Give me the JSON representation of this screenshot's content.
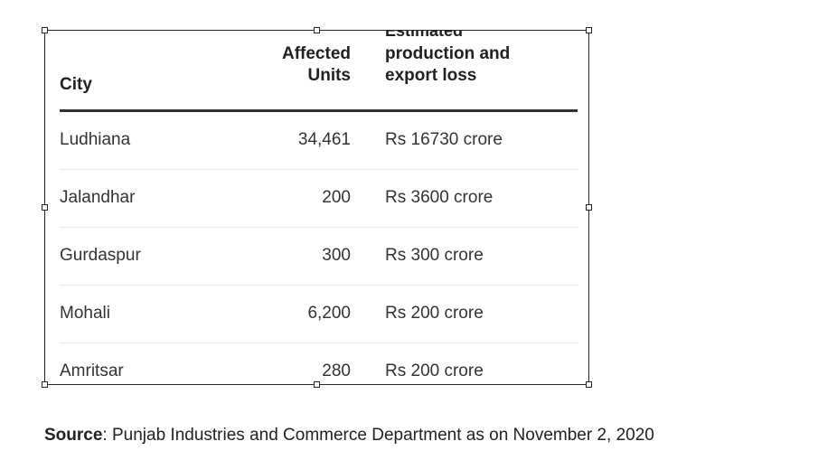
{
  "table": {
    "headers": {
      "city": "City",
      "affected_units_line1": "Affected",
      "affected_units_line2": "Units",
      "loss_line0": "Estimated",
      "loss_line1": "production and",
      "loss_line2": "export loss"
    },
    "rows": [
      {
        "city": "Ludhiana",
        "units": "34,461",
        "loss": "Rs 16730 crore"
      },
      {
        "city": "Jalandhar",
        "units": "200",
        "loss": "Rs 3600 crore"
      },
      {
        "city": "Gurdaspur",
        "units": "300",
        "loss": "Rs 300 crore"
      },
      {
        "city": "Mohali",
        "units": "6,200",
        "loss": "Rs 200 crore"
      },
      {
        "city": "Amritsar",
        "units": "280",
        "loss": "Rs 200 crore"
      }
    ]
  },
  "source": {
    "label": "Source",
    "text": ": Punjab Industries and Commerce Department as on November 2, 2020"
  }
}
